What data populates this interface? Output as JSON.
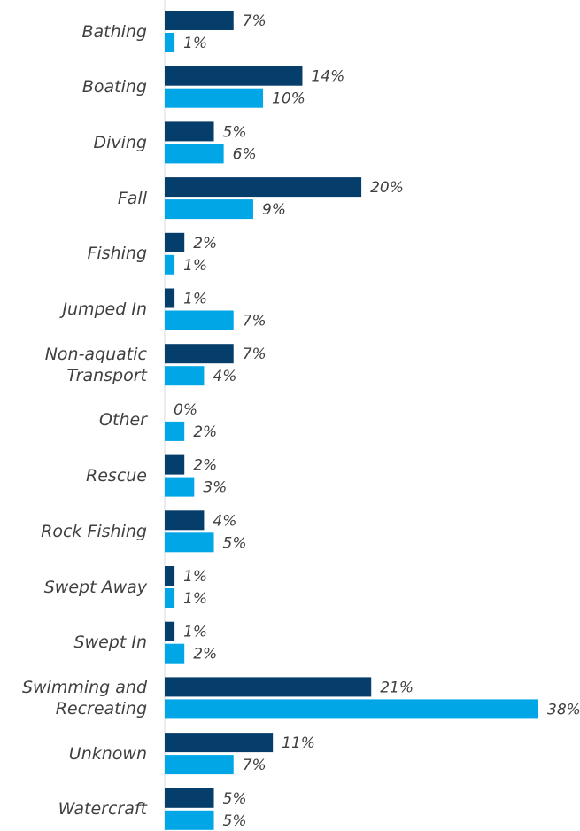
{
  "chart_data": {
    "type": "hbar",
    "categories": [
      "Bathing",
      "Boating",
      "Diving",
      "Fall",
      "Fishing",
      "Jumped In",
      "Non-aquatic Transport",
      "Other",
      "Rescue",
      "Rock Fishing",
      "Swept Away",
      "Swept In",
      "Swimming and Recreating",
      "Unknown",
      "Watercraft"
    ],
    "series": [
      {
        "color": "#053d6b",
        "values": [
          7,
          14,
          5,
          20,
          2,
          1,
          7,
          0,
          2,
          4,
          1,
          1,
          21,
          11,
          5
        ],
        "value_labels": [
          "7%",
          "14%",
          "5%",
          "20%",
          "2%",
          "1%",
          "7%",
          "0%",
          "2%",
          "4%",
          "1%",
          "1%",
          "21%",
          "11%",
          "5%"
        ]
      },
      {
        "color": "#00a6e6",
        "values": [
          1,
          10,
          6,
          9,
          1,
          7,
          4,
          2,
          3,
          5,
          1,
          2,
          38,
          7,
          5
        ],
        "value_labels": [
          "1%",
          "10%",
          "6%",
          "9%",
          "1%",
          "7%",
          "4%",
          "2%",
          "3%",
          "5%",
          "1%",
          "2%",
          "38%",
          "7%",
          "5%"
        ]
      }
    ],
    "xlim": [
      0,
      38
    ]
  }
}
